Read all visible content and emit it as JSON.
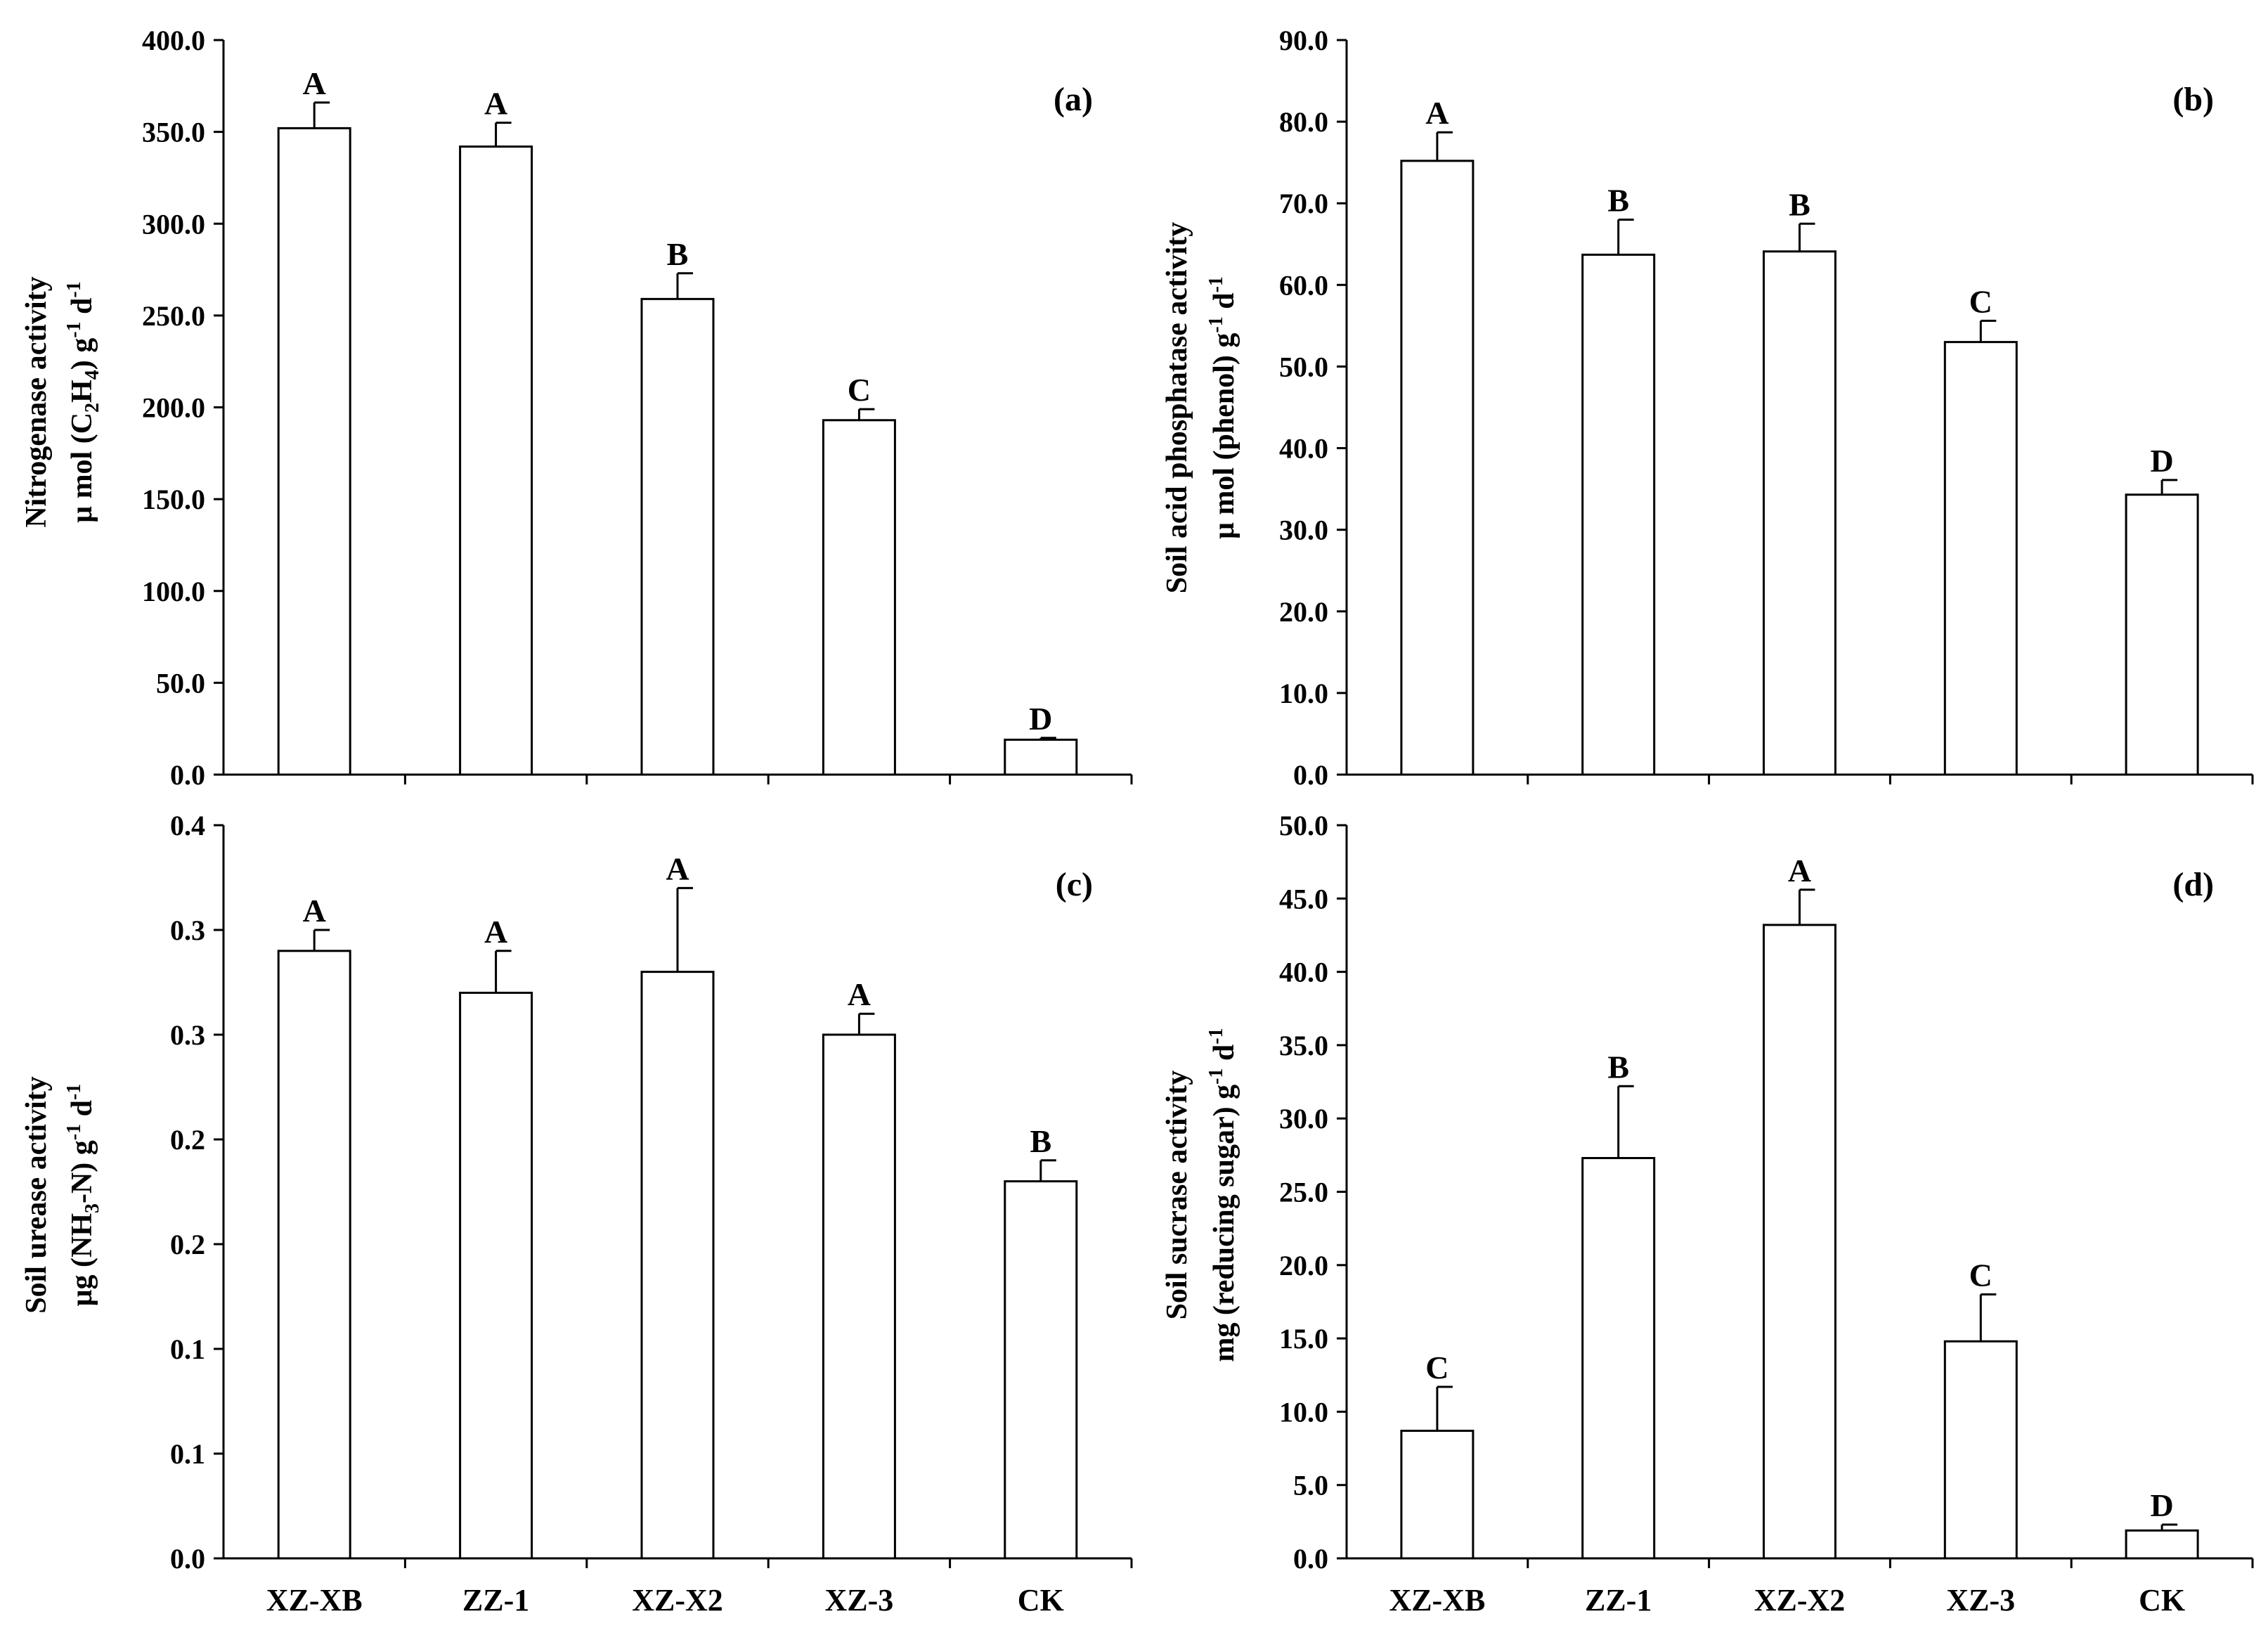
{
  "chart_data": [
    {
      "type": "bar",
      "panel_label": "(a)",
      "title": "",
      "ylabel_line1": "Nitrogenase activity",
      "ylabel_line2": {
        "prefix": "μ mol (C",
        "sub1": "2",
        "mid1": "H",
        "sub2": "4",
        "mid2": ") g",
        "sup1": "-1",
        "mid3": " d",
        "sup2": "-1"
      },
      "categories": [
        "XZ-XB",
        "ZZ-1",
        "XZ-X2",
        "XZ-3",
        "CK"
      ],
      "values": [
        352,
        342,
        259,
        193,
        19
      ],
      "errors": [
        14,
        13,
        14,
        6,
        1
      ],
      "significance": [
        "A",
        "A",
        "B",
        "C",
        "D"
      ],
      "ylim": [
        0,
        400
      ],
      "yticks": [
        0,
        50,
        100,
        150,
        200,
        250,
        300,
        350,
        400
      ],
      "ytick_labels": [
        "0.0",
        "50.0",
        "100.0",
        "150.0",
        "200.0",
        "250.0",
        "300.0",
        "350.0",
        "400.0"
      ],
      "show_xlabels": false
    },
    {
      "type": "bar",
      "panel_label": "(b)",
      "title": "",
      "ylabel_line1": "Soil acid phosphatase activity",
      "ylabel_line2": {
        "prefix": "μ mol (phenol) g",
        "sup1": "-1",
        "mid3": " d",
        "sup2": "-1"
      },
      "categories": [
        "XZ-XB",
        "ZZ-1",
        "XZ-X2",
        "XZ-3",
        "CK"
      ],
      "values": [
        75.2,
        63.7,
        64.1,
        53,
        34.3
      ],
      "errors": [
        3.5,
        4.3,
        3.4,
        2.6,
        1.8
      ],
      "significance": [
        "A",
        "B",
        "B",
        "C",
        "D"
      ],
      "ylim": [
        0,
        90
      ],
      "yticks": [
        0,
        10,
        20,
        30,
        40,
        50,
        60,
        70,
        80,
        90
      ],
      "ytick_labels": [
        "0.0",
        "10.0",
        "20.0",
        "30.0",
        "40.0",
        "50.0",
        "60.0",
        "70.0",
        "80.0",
        "90.0"
      ],
      "show_xlabels": false
    },
    {
      "type": "bar",
      "panel_label": "(c)",
      "title": "",
      "ylabel_line1": "Soil urease activity",
      "ylabel_line2": {
        "prefix": "μg (NH",
        "sub1": "3",
        "mid1": "-N) g",
        "sup1": "-1",
        "mid3": " d",
        "sup2": "-1"
      },
      "categories": [
        "XZ-XB",
        "ZZ-1",
        "XZ-X2",
        "XZ-3",
        "CK"
      ],
      "values": [
        0.29,
        0.27,
        0.28,
        0.25,
        0.18
      ],
      "errors": [
        0.01,
        0.02,
        0.04,
        0.01,
        0.01
      ],
      "significance": [
        "A",
        "A",
        "A",
        "A",
        "B"
      ],
      "ylim": [
        0,
        0.35
      ],
      "yticks": [
        0,
        0.05,
        0.1,
        0.15,
        0.2,
        0.25,
        0.3,
        0.35
      ],
      "ytick_labels": [
        "0.0",
        "0.1",
        "0.1",
        "0.2",
        "0.2",
        "0.3",
        "0.3",
        "0.4"
      ],
      "show_xlabels": true
    },
    {
      "type": "bar",
      "panel_label": "(d)",
      "title": "",
      "ylabel_line1": "Soil sucrase activity",
      "ylabel_line2": {
        "prefix": "mg (reducing sugar) g",
        "sup1": "-1",
        "mid3": " d",
        "sup2": "-1"
      },
      "categories": [
        "XZ-XB",
        "ZZ-1",
        "XZ-X2",
        "XZ-3",
        "CK"
      ],
      "values": [
        8.7,
        27.3,
        43.2,
        14.8,
        1.9
      ],
      "errors": [
        3,
        4.9,
        2.4,
        3.2,
        0.4
      ],
      "significance": [
        "C",
        "B",
        "A",
        "C",
        "D"
      ],
      "ylim": [
        0,
        50
      ],
      "yticks": [
        0,
        5,
        10,
        15,
        20,
        25,
        30,
        35,
        40,
        45,
        50
      ],
      "ytick_labels": [
        "0.0",
        "5.0",
        "10.0",
        "15.0",
        "20.0",
        "25.0",
        "30.0",
        "35.0",
        "40.0",
        "45.0",
        "50.0"
      ],
      "show_xlabels": true
    }
  ],
  "colors": {
    "bar_fill": "#ffffff",
    "stroke": "#000000",
    "background": "#ffffff"
  }
}
